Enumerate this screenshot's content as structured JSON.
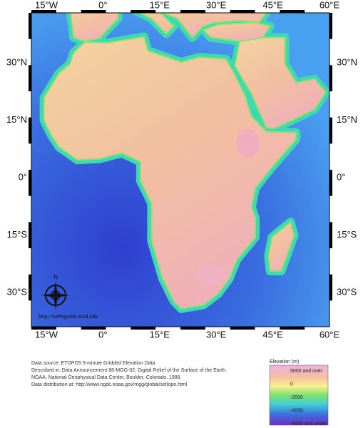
{
  "map": {
    "lon_labels": [
      "15°W",
      "0°",
      "15°E",
      "30°E",
      "45°E",
      "60°E"
    ],
    "lat_labels": [
      "30°N",
      "15°N",
      "0°",
      "15°S",
      "30°S"
    ],
    "watermark": "http://earthguide.ucsd.edu",
    "compass": "N"
  },
  "credits": [
    "Data source: ETOPO5 5-minute Gridded Elevation Data",
    "Described in: Data Announcement 88-MGG-02, Digital Relief of the Surface of the Earth.",
    "NOAA, National Geophysical Data Center, Boulder, Colorado, 1988.",
    "Data distribution at: http://www.ngdc.noaa.gov/mgg/global/seltopo.html"
  ],
  "legend": {
    "title": "Elevation (m)",
    "labels": [
      "5000 and over",
      "0",
      "-2000",
      "-4000",
      "-6000 and under"
    ]
  }
}
